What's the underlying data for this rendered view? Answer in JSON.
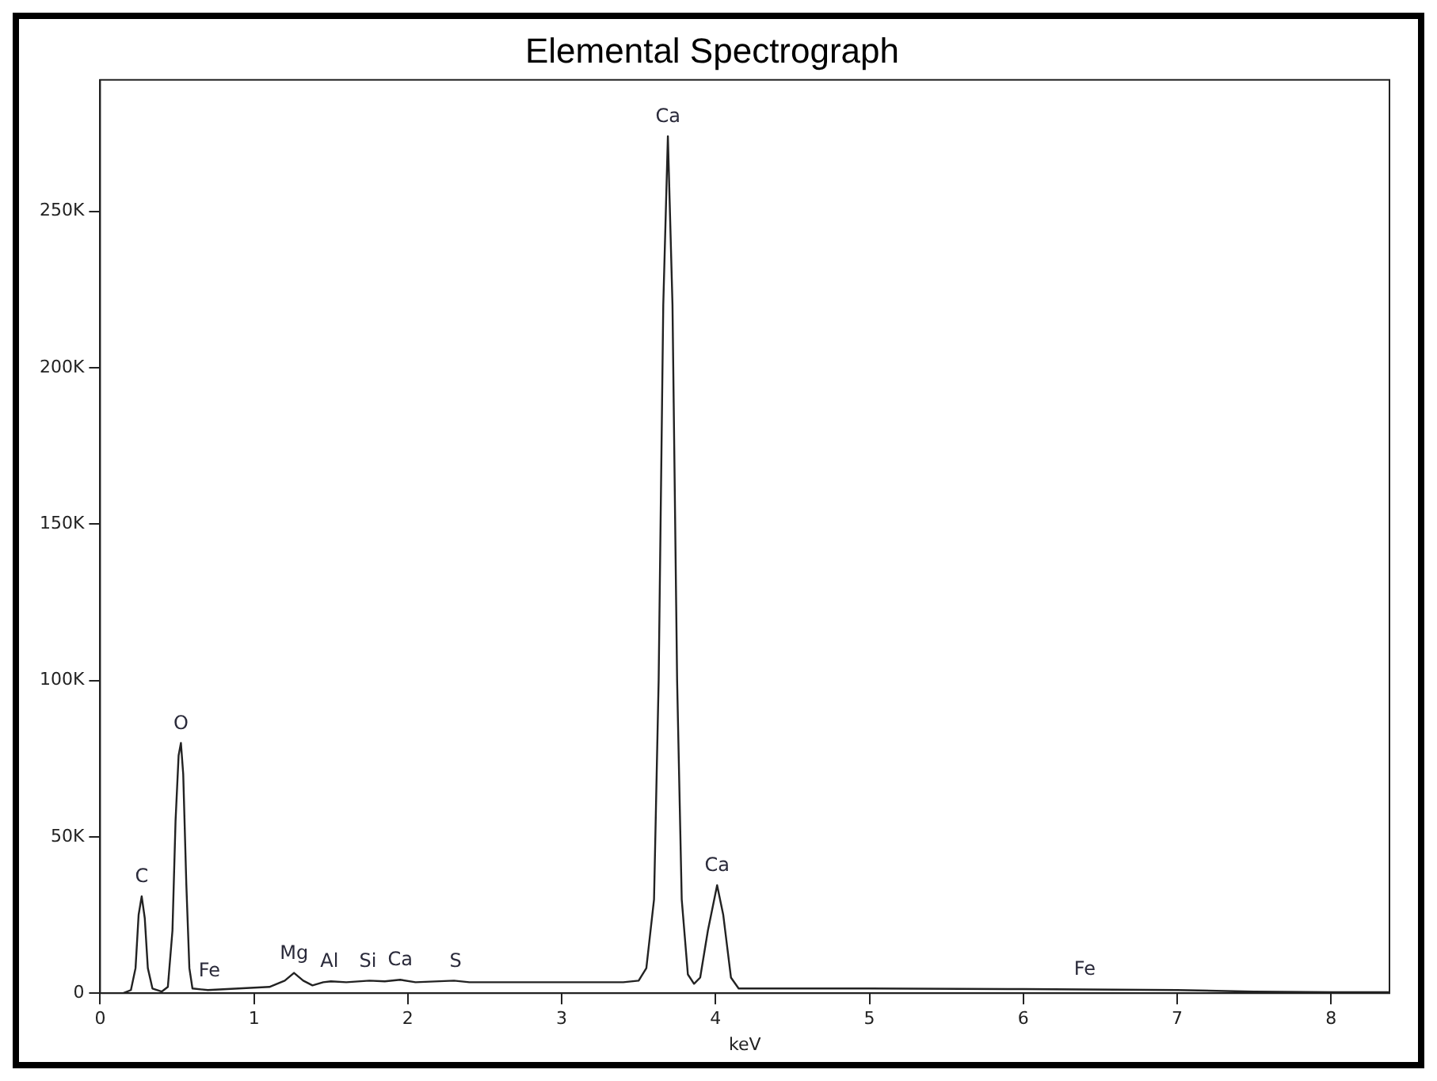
{
  "chart_data": {
    "type": "line",
    "title": "Elemental Spectrograph",
    "xlabel": "keV",
    "xlim": [
      0,
      8.38
    ],
    "xticks": [
      0,
      1,
      2,
      3,
      4,
      5,
      6,
      7,
      8
    ],
    "ylim": [
      0,
      292000
    ],
    "yticks": [
      {
        "value": 0,
        "label": "0"
      },
      {
        "value": 50000,
        "label": "50K"
      },
      {
        "value": 100000,
        "label": "100K"
      },
      {
        "value": 150000,
        "label": "150K"
      },
      {
        "value": 200000,
        "label": "200K"
      },
      {
        "value": 250000,
        "label": "250K"
      }
    ],
    "grid": false,
    "legend": false,
    "marker": "none",
    "line_style": "solid",
    "series": [
      {
        "color": "#222222",
        "x": [
          0,
          0.15,
          0.2,
          0.23,
          0.25,
          0.27,
          0.29,
          0.31,
          0.34,
          0.4,
          0.44,
          0.47,
          0.49,
          0.51,
          0.525,
          0.54,
          0.56,
          0.58,
          0.6,
          0.7,
          0.9,
          1.1,
          1.2,
          1.26,
          1.32,
          1.38,
          1.45,
          1.5,
          1.6,
          1.75,
          1.85,
          1.95,
          2.05,
          2.3,
          2.4,
          3.0,
          3.4,
          3.5,
          3.55,
          3.6,
          3.63,
          3.66,
          3.69,
          3.72,
          3.75,
          3.78,
          3.82,
          3.86,
          3.9,
          3.95,
          4.01,
          4.05,
          4.1,
          4.15,
          5,
          6,
          7,
          7.5,
          8,
          8.38
        ],
        "values": [
          0,
          0,
          1000,
          8000,
          25000,
          31000,
          24000,
          8000,
          1500,
          500,
          2000,
          20000,
          55000,
          76000,
          80000,
          70000,
          35000,
          8000,
          1500,
          1000,
          1500,
          2000,
          4000,
          6500,
          4000,
          2500,
          3500,
          3800,
          3500,
          4000,
          3800,
          4300,
          3500,
          4000,
          3500,
          3500,
          3500,
          4000,
          8000,
          30000,
          100000,
          220000,
          274000,
          220000,
          100000,
          30000,
          6000,
          3000,
          5000,
          20000,
          34500,
          25000,
          5000,
          1500,
          1500,
          1300,
          1000,
          500,
          300,
          300
        ]
      }
    ],
    "annotations": [
      {
        "text": "C",
        "x": 0.27,
        "y": 31000
      },
      {
        "text": "O",
        "x": 0.525,
        "y": 80000
      },
      {
        "text": "Fe",
        "x": 0.71,
        "y": 1000
      },
      {
        "text": "Mg",
        "x": 1.26,
        "y": 6500
      },
      {
        "text": "Al",
        "x": 1.49,
        "y": 3800
      },
      {
        "text": "Si",
        "x": 1.74,
        "y": 4000
      },
      {
        "text": "Ca",
        "x": 1.95,
        "y": 4300
      },
      {
        "text": "S",
        "x": 2.31,
        "y": 4000
      },
      {
        "text": "Ca",
        "x": 3.69,
        "y": 274000
      },
      {
        "text": "Ca",
        "x": 4.01,
        "y": 34500
      },
      {
        "text": "Fe",
        "x": 6.4,
        "y": 1300
      }
    ]
  }
}
